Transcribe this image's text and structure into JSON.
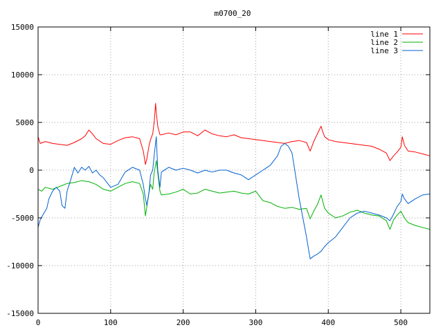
{
  "chart_data": {
    "type": "line",
    "title": "m0700_20",
    "xlabel": "",
    "ylabel": "",
    "xlim": [
      0,
      540
    ],
    "ylim": [
      -15000,
      15000
    ],
    "grid": true,
    "legend_position": "top-right",
    "x_ticks": [
      0,
      100,
      200,
      300,
      400,
      500
    ],
    "y_ticks": [
      -15000,
      -10000,
      -5000,
      0,
      5000,
      10000,
      15000
    ],
    "x_tick_labels": [
      "0",
      "100",
      "200",
      "300",
      "400",
      "500"
    ],
    "y_tick_labels": [
      "-15000",
      "-10000",
      "-5000",
      "0",
      "5000",
      "10000",
      "15000"
    ],
    "series": [
      {
        "name": "line 1",
        "color": "#ff0000",
        "x": [
          0,
          3,
          10,
          20,
          30,
          40,
          50,
          60,
          65,
          70,
          75,
          80,
          90,
          100,
          110,
          120,
          130,
          140,
          145,
          148,
          150,
          153,
          155,
          158,
          160,
          162,
          163,
          165,
          168,
          170,
          180,
          190,
          200,
          210,
          220,
          230,
          240,
          250,
          260,
          270,
          280,
          290,
          300,
          310,
          320,
          330,
          340,
          350,
          360,
          370,
          375,
          380,
          385,
          390,
          392,
          395,
          400,
          410,
          420,
          430,
          440,
          450,
          460,
          470,
          480,
          485,
          490,
          495,
          500,
          502,
          505,
          510,
          520,
          530,
          540
        ],
        "y": [
          3500,
          2800,
          3000,
          2800,
          2700,
          2600,
          2900,
          3300,
          3600,
          4200,
          3800,
          3300,
          2800,
          2700,
          3100,
          3400,
          3500,
          3300,
          2000,
          600,
          1200,
          2600,
          3200,
          3800,
          5000,
          7000,
          6000,
          4600,
          3700,
          3700,
          3900,
          3700,
          4000,
          4000,
          3600,
          4200,
          3800,
          3600,
          3500,
          3700,
          3400,
          3300,
          3200,
          3100,
          3000,
          2900,
          2800,
          3000,
          3100,
          2900,
          2000,
          3000,
          3800,
          4600,
          4100,
          3500,
          3200,
          3000,
          2900,
          2800,
          2700,
          2600,
          2500,
          2200,
          1800,
          1000,
          1500,
          1900,
          2400,
          3500,
          2600,
          2000,
          1900,
          1700,
          1500
        ]
      },
      {
        "name": "line 2",
        "color": "#00b000",
        "x": [
          0,
          5,
          10,
          20,
          30,
          40,
          50,
          60,
          70,
          80,
          90,
          100,
          110,
          120,
          130,
          140,
          145,
          148,
          150,
          153,
          155,
          158,
          160,
          163,
          165,
          168,
          170,
          180,
          190,
          200,
          210,
          220,
          230,
          240,
          250,
          260,
          270,
          280,
          290,
          300,
          310,
          320,
          330,
          340,
          350,
          360,
          370,
          375,
          380,
          385,
          390,
          395,
          400,
          410,
          420,
          430,
          440,
          450,
          460,
          470,
          480,
          485,
          490,
          495,
          500,
          505,
          510,
          520,
          530,
          540
        ],
        "y": [
          -2000,
          -2200,
          -1800,
          -2000,
          -1700,
          -1400,
          -1300,
          -1100,
          -1200,
          -1500,
          -2000,
          -2200,
          -1800,
          -1400,
          -1200,
          -1400,
          -2500,
          -4800,
          -3800,
          -2300,
          -1500,
          -2000,
          -300,
          1000,
          -300,
          -2200,
          -2600,
          -2500,
          -2300,
          -2000,
          -2500,
          -2400,
          -2000,
          -2200,
          -2400,
          -2300,
          -2200,
          -2400,
          -2500,
          -2200,
          -3200,
          -3400,
          -3800,
          -4000,
          -3900,
          -4100,
          -4000,
          -5100,
          -4300,
          -3600,
          -2600,
          -4000,
          -4500,
          -5000,
          -4800,
          -4400,
          -4200,
          -4500,
          -4700,
          -4800,
          -5300,
          -6200,
          -5200,
          -4700,
          -4300,
          -5000,
          -5500,
          -5800,
          -6000,
          -6200
        ]
      },
      {
        "name": "line 3",
        "color": "#0060d0",
        "x": [
          0,
          3,
          8,
          12,
          15,
          20,
          25,
          30,
          33,
          37,
          40,
          45,
          50,
          55,
          60,
          65,
          70,
          75,
          80,
          85,
          90,
          95,
          100,
          110,
          120,
          130,
          140,
          145,
          148,
          150,
          153,
          155,
          158,
          160,
          163,
          165,
          168,
          170,
          180,
          190,
          200,
          210,
          220,
          230,
          240,
          250,
          260,
          270,
          280,
          290,
          300,
          310,
          320,
          330,
          335,
          340,
          345,
          350,
          360,
          370,
          375,
          380,
          385,
          390,
          395,
          400,
          410,
          420,
          430,
          440,
          450,
          460,
          470,
          480,
          485,
          490,
          495,
          500,
          502,
          505,
          510,
          520,
          530,
          540
        ],
        "y": [
          -6000,
          -5200,
          -4500,
          -4000,
          -3000,
          -2200,
          -1800,
          -2200,
          -3700,
          -4000,
          -2200,
          -1000,
          300,
          -300,
          300,
          0,
          400,
          -300,
          0,
          -500,
          -800,
          -1300,
          -1800,
          -1500,
          -200,
          300,
          0,
          -1500,
          -3000,
          -3700,
          -2200,
          -500,
          0,
          1500,
          3500,
          0,
          -1800,
          -200,
          300,
          0,
          200,
          0,
          -300,
          0,
          -200,
          0,
          0,
          -300,
          -500,
          -1000,
          -500,
          0,
          500,
          1500,
          2500,
          2800,
          2500,
          1800,
          -3000,
          -7000,
          -9300,
          -9000,
          -8800,
          -8500,
          -8000,
          -7600,
          -7000,
          -6000,
          -5000,
          -4500,
          -4300,
          -4500,
          -4700,
          -5000,
          -5300,
          -4600,
          -3800,
          -3300,
          -2500,
          -3000,
          -3500,
          -3000,
          -2600,
          -2500
        ]
      }
    ]
  }
}
